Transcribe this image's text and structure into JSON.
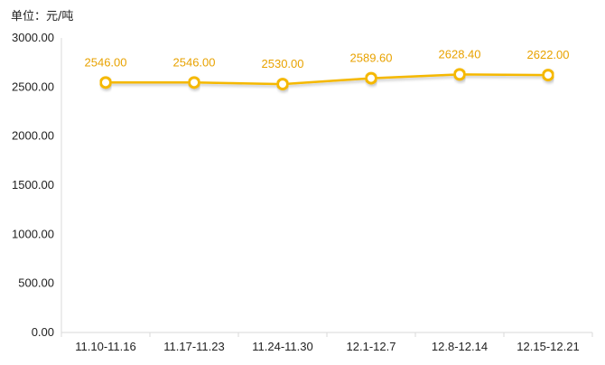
{
  "chart_data": {
    "type": "line",
    "unit_label": "单位：元/吨",
    "categories": [
      "11.10-11.16",
      "11.17-11.23",
      "11.24-11.30",
      "12.1-12.7",
      "12.8-12.14",
      "12.15-12.21"
    ],
    "series": [
      {
        "values": [
          2546.0,
          2546.0,
          2530.0,
          2589.6,
          2628.4,
          2622.0
        ],
        "data_labels": [
          "2546.00",
          "2546.00",
          "2530.00",
          "2589.60",
          "2628.40",
          "2622.00"
        ]
      }
    ],
    "ylim": [
      0,
      3000
    ],
    "yticks": [
      0,
      500,
      1000,
      1500,
      2000,
      2500,
      3000
    ],
    "ytick_labels": [
      "0.00",
      "500.00",
      "1000.00",
      "1500.00",
      "2000.00",
      "2500.00",
      "3000.00"
    ],
    "grid": false,
    "colors": {
      "line": "#f5b800",
      "label": "#e8a200",
      "axis": "#d9d9d9",
      "tick_text": "#222222"
    }
  }
}
